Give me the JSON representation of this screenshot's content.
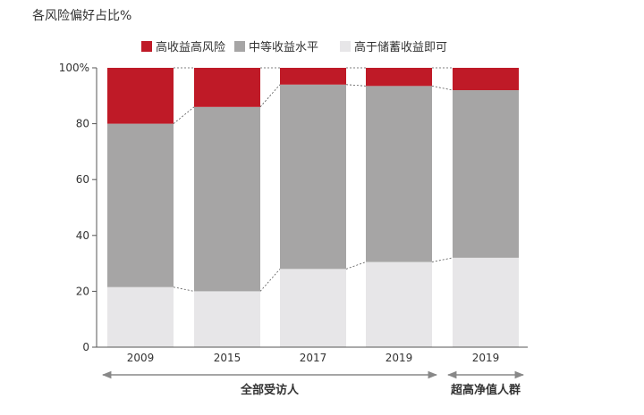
{
  "chart_data": {
    "type": "bar",
    "stacked": true,
    "percent": true,
    "title": "各风险偏好占比%",
    "ylim": [
      0,
      100
    ],
    "yticks": [
      "0",
      "20",
      "40",
      "60",
      "80",
      "100%"
    ],
    "categories": [
      "2009",
      "2015",
      "2017",
      "2019",
      "2019"
    ],
    "series": [
      {
        "name": "高于储蓄收益即可",
        "color": "#e7e6e8",
        "values": [
          21.5,
          20,
          28,
          30.5,
          32
        ]
      },
      {
        "name": "中等收益水平",
        "color": "#a6a5a5",
        "values": [
          58.5,
          66,
          66,
          63,
          60
        ]
      },
      {
        "name": "高收益高风险",
        "color": "#bf1a27",
        "values": [
          20,
          14,
          6,
          6.5,
          8
        ]
      }
    ],
    "legend_order": [
      2,
      1,
      0
    ],
    "groups": [
      {
        "label": "全部受访人",
        "start": 0,
        "end": 3
      },
      {
        "label": "超高净值人群",
        "start": 4,
        "end": 4
      }
    ],
    "connectors": true,
    "legend_position": "top",
    "colors": {
      "axis": "#555555",
      "connector": "#555555",
      "text": "#333333"
    }
  }
}
